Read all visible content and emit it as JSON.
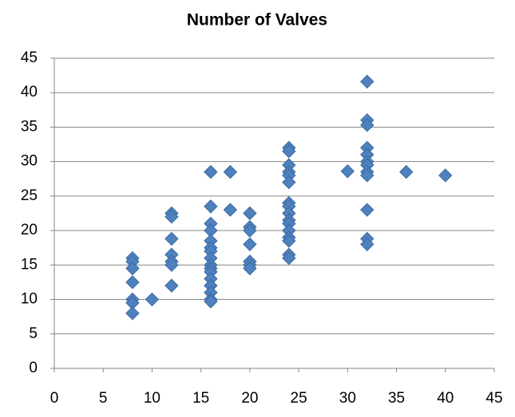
{
  "chart_data": {
    "type": "scatter",
    "title": "Number of Valves",
    "x": [
      8,
      8,
      8,
      8,
      8,
      8,
      8,
      10,
      12,
      12,
      12,
      12,
      12,
      12,
      12,
      16,
      16,
      16,
      16,
      16,
      16,
      16,
      16,
      16,
      16,
      16,
      16,
      16,
      16,
      16,
      16,
      18,
      18,
      20,
      20,
      20,
      20,
      20,
      20,
      20,
      24,
      24,
      24,
      24,
      24,
      24,
      24,
      24,
      24,
      24,
      24,
      24,
      24,
      24,
      24,
      24,
      30,
      32,
      32,
      32,
      32,
      32,
      32,
      32,
      32,
      32,
      32,
      32,
      32,
      36,
      40
    ],
    "values": [
      16,
      15.5,
      14.5,
      12.5,
      10,
      9.5,
      8,
      10,
      22.5,
      22,
      18.8,
      16.5,
      15.5,
      15,
      12,
      28.5,
      23.5,
      21,
      20,
      18.5,
      17.5,
      17,
      16,
      15,
      14.5,
      14,
      13,
      12,
      11,
      10,
      9.7,
      28.5,
      23,
      22.5,
      20.5,
      20,
      18,
      15.5,
      15,
      14.5,
      32,
      31.5,
      29.5,
      28.5,
      28,
      27,
      24,
      23.5,
      22.5,
      21.5,
      21,
      20,
      19,
      18.5,
      16.5,
      16,
      28.6,
      41.6,
      36,
      35.3,
      32,
      31,
      30,
      29.5,
      28.5,
      28,
      23,
      18.8,
      18,
      28.5,
      28
    ],
    "color": "#4f81bd",
    "xlim": [
      0,
      45
    ],
    "xticks": [
      0,
      5,
      10,
      15,
      20,
      25,
      30,
      35,
      40,
      45
    ],
    "ylim": [
      0,
      45
    ],
    "yticks": [
      0,
      5,
      10,
      15,
      20,
      25,
      30,
      35,
      40,
      45
    ],
    "grid": true
  }
}
